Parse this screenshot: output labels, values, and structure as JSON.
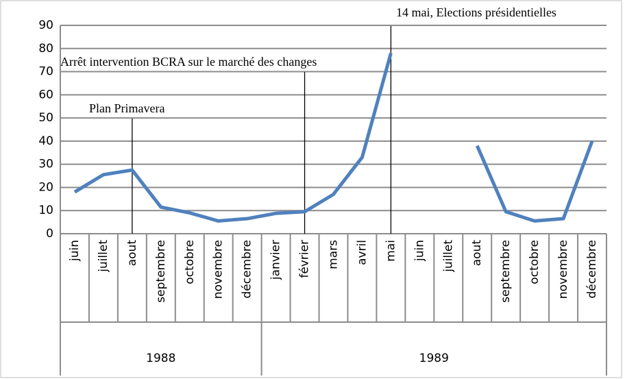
{
  "chart_data": {
    "type": "line",
    "categories": [
      "juin",
      "juillet",
      "aout",
      "septembre",
      "octobre",
      "novembre",
      "décembre",
      "janvier",
      "février",
      "mars",
      "avril",
      "mai",
      "juin",
      "juillet",
      "aout",
      "septembre",
      "octobre",
      "novembre",
      "décembre"
    ],
    "year_groups": [
      "1988",
      "1989"
    ],
    "series": [
      {
        "color": "#4f81bd",
        "values": [
          18,
          25.5,
          27.5,
          11.5,
          9,
          5.5,
          6.5,
          8.8,
          9.5,
          17,
          33,
          78,
          null,
          null,
          38,
          9.5,
          5.5,
          6.5,
          40
        ]
      }
    ],
    "ylim": [
      0,
      90
    ],
    "yticks": [
      0,
      10,
      20,
      30,
      40,
      50,
      60,
      70,
      80,
      90
    ],
    "grid": true,
    "annotations": [
      "Plan Primavera",
      "Arrêt intervention BCRA sur le marché des changes",
      "14 mai, Elections présidentielles"
    ]
  }
}
